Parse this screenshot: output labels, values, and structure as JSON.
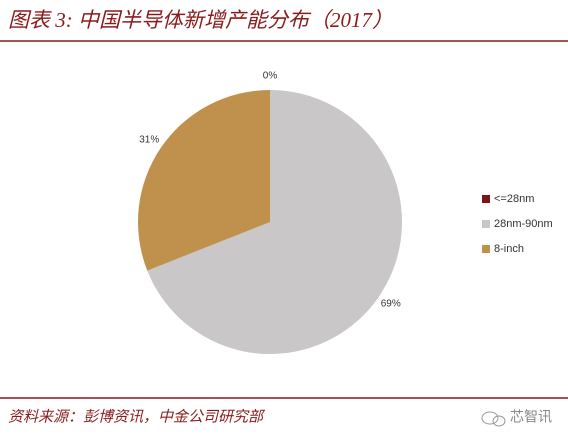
{
  "chart_data": {
    "type": "pie",
    "title": "图表 3:  中国半导体新增产能分布（2017）",
    "categories": [
      "<=28nm",
      "28nm-90nm",
      "8-inch"
    ],
    "values": [
      0,
      69,
      31
    ],
    "value_labels": [
      "0%",
      "69%",
      "31%"
    ],
    "colors": [
      "#7b1418",
      "#c9c7c8",
      "#c0904d"
    ],
    "legend": "right",
    "source": "资料来源：彭博资讯，中金公司研究部"
  },
  "watermark": "芯智讯"
}
